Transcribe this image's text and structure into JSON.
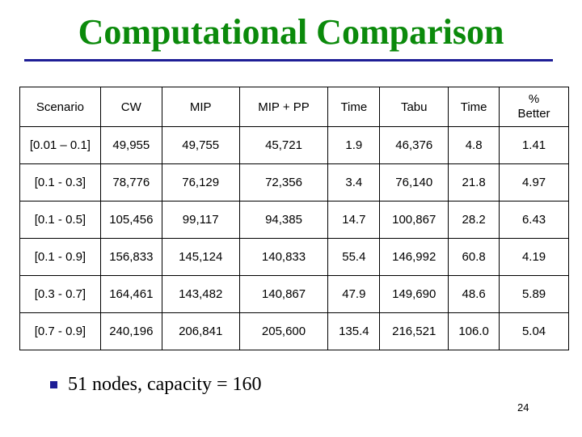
{
  "slide": {
    "title": "Computational Comparison",
    "bullet": "51 nodes, capacity = 160",
    "page_number": "24"
  },
  "table": {
    "headers": [
      "Scenario",
      "CW",
      "MIP",
      "MIP + PP",
      "Time",
      "Tabu",
      "Time",
      "% Better"
    ],
    "rows": [
      [
        "[0.01 – 0.1]",
        "49,955",
        "49,755",
        "45,721",
        "1.9",
        "46,376",
        "4.8",
        "1.41"
      ],
      [
        "[0.1 - 0.3]",
        "78,776",
        "76,129",
        "72,356",
        "3.4",
        "76,140",
        "21.8",
        "4.97"
      ],
      [
        "[0.1 - 0.5]",
        "105,456",
        "99,117",
        "94,385",
        "14.7",
        "100,867",
        "28.2",
        "6.43"
      ],
      [
        "[0.1 - 0.9]",
        "156,833",
        "145,124",
        "140,833",
        "55.4",
        "146,992",
        "60.8",
        "4.19"
      ],
      [
        "[0.3 - 0.7]",
        "164,461",
        "143,482",
        "140,867",
        "47.9",
        "149,690",
        "48.6",
        "5.89"
      ],
      [
        "[0.7 - 0.9]",
        "240,196",
        "206,841",
        "205,600",
        "135.4",
        "216,521",
        "106.0",
        "5.04"
      ]
    ]
  },
  "colors": {
    "title": "#0b8a0b",
    "rule": "#1e1e96",
    "bullet": "#1e1e96"
  }
}
